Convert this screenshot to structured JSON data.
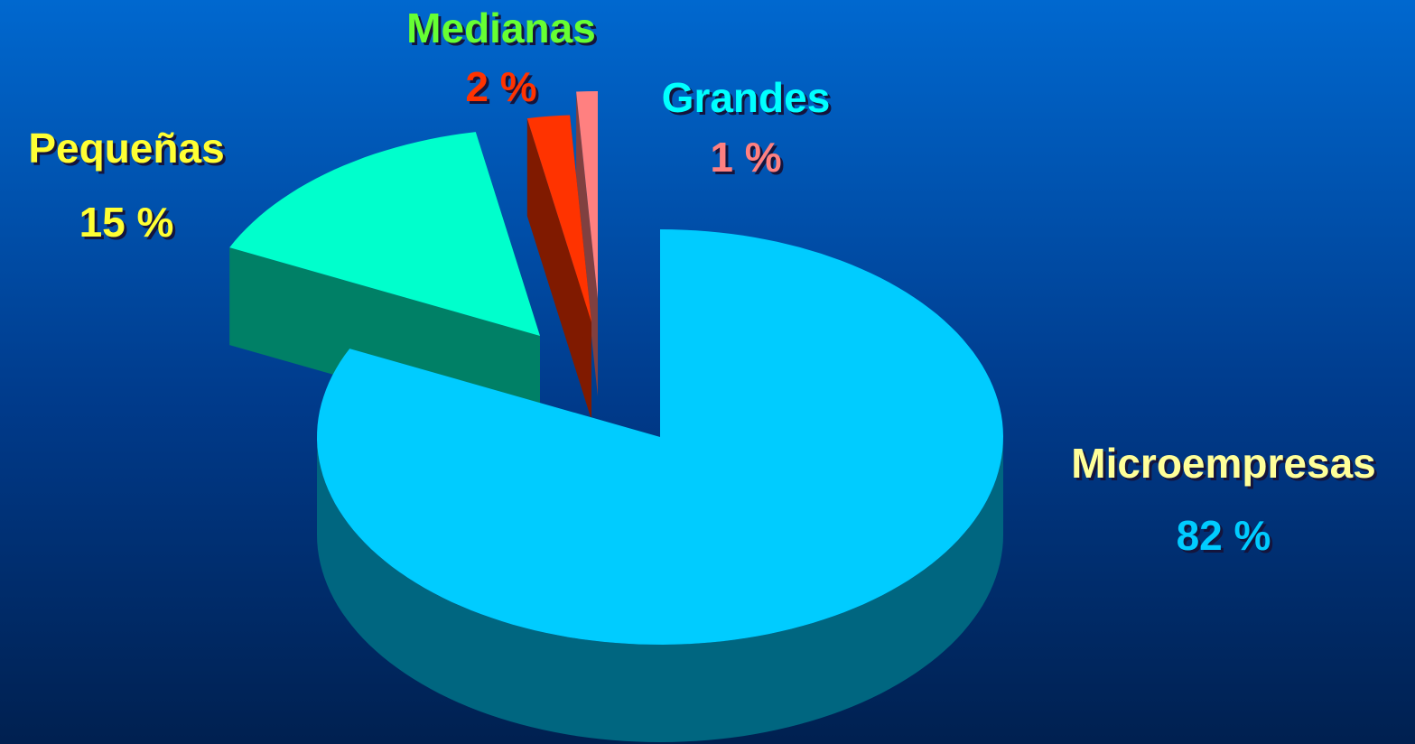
{
  "chart_data": {
    "type": "pie",
    "categories": [
      "Microempresas",
      "Pequeñas",
      "Medianas",
      "Grandes"
    ],
    "values": [
      82,
      15,
      2,
      1
    ],
    "value_labels": [
      "82 %",
      "15 %",
      "2 %",
      "1 %"
    ],
    "colors": [
      "#00ccff",
      "#00ffcc",
      "#ff3300",
      "#ff8080"
    ],
    "label_colors": [
      "#ffff99",
      "#ffff33",
      "#66ff33",
      "#00ffff"
    ],
    "value_label_colors": [
      "#00ccff",
      "#ffff33",
      "#ff3300",
      "#ff8080"
    ]
  }
}
